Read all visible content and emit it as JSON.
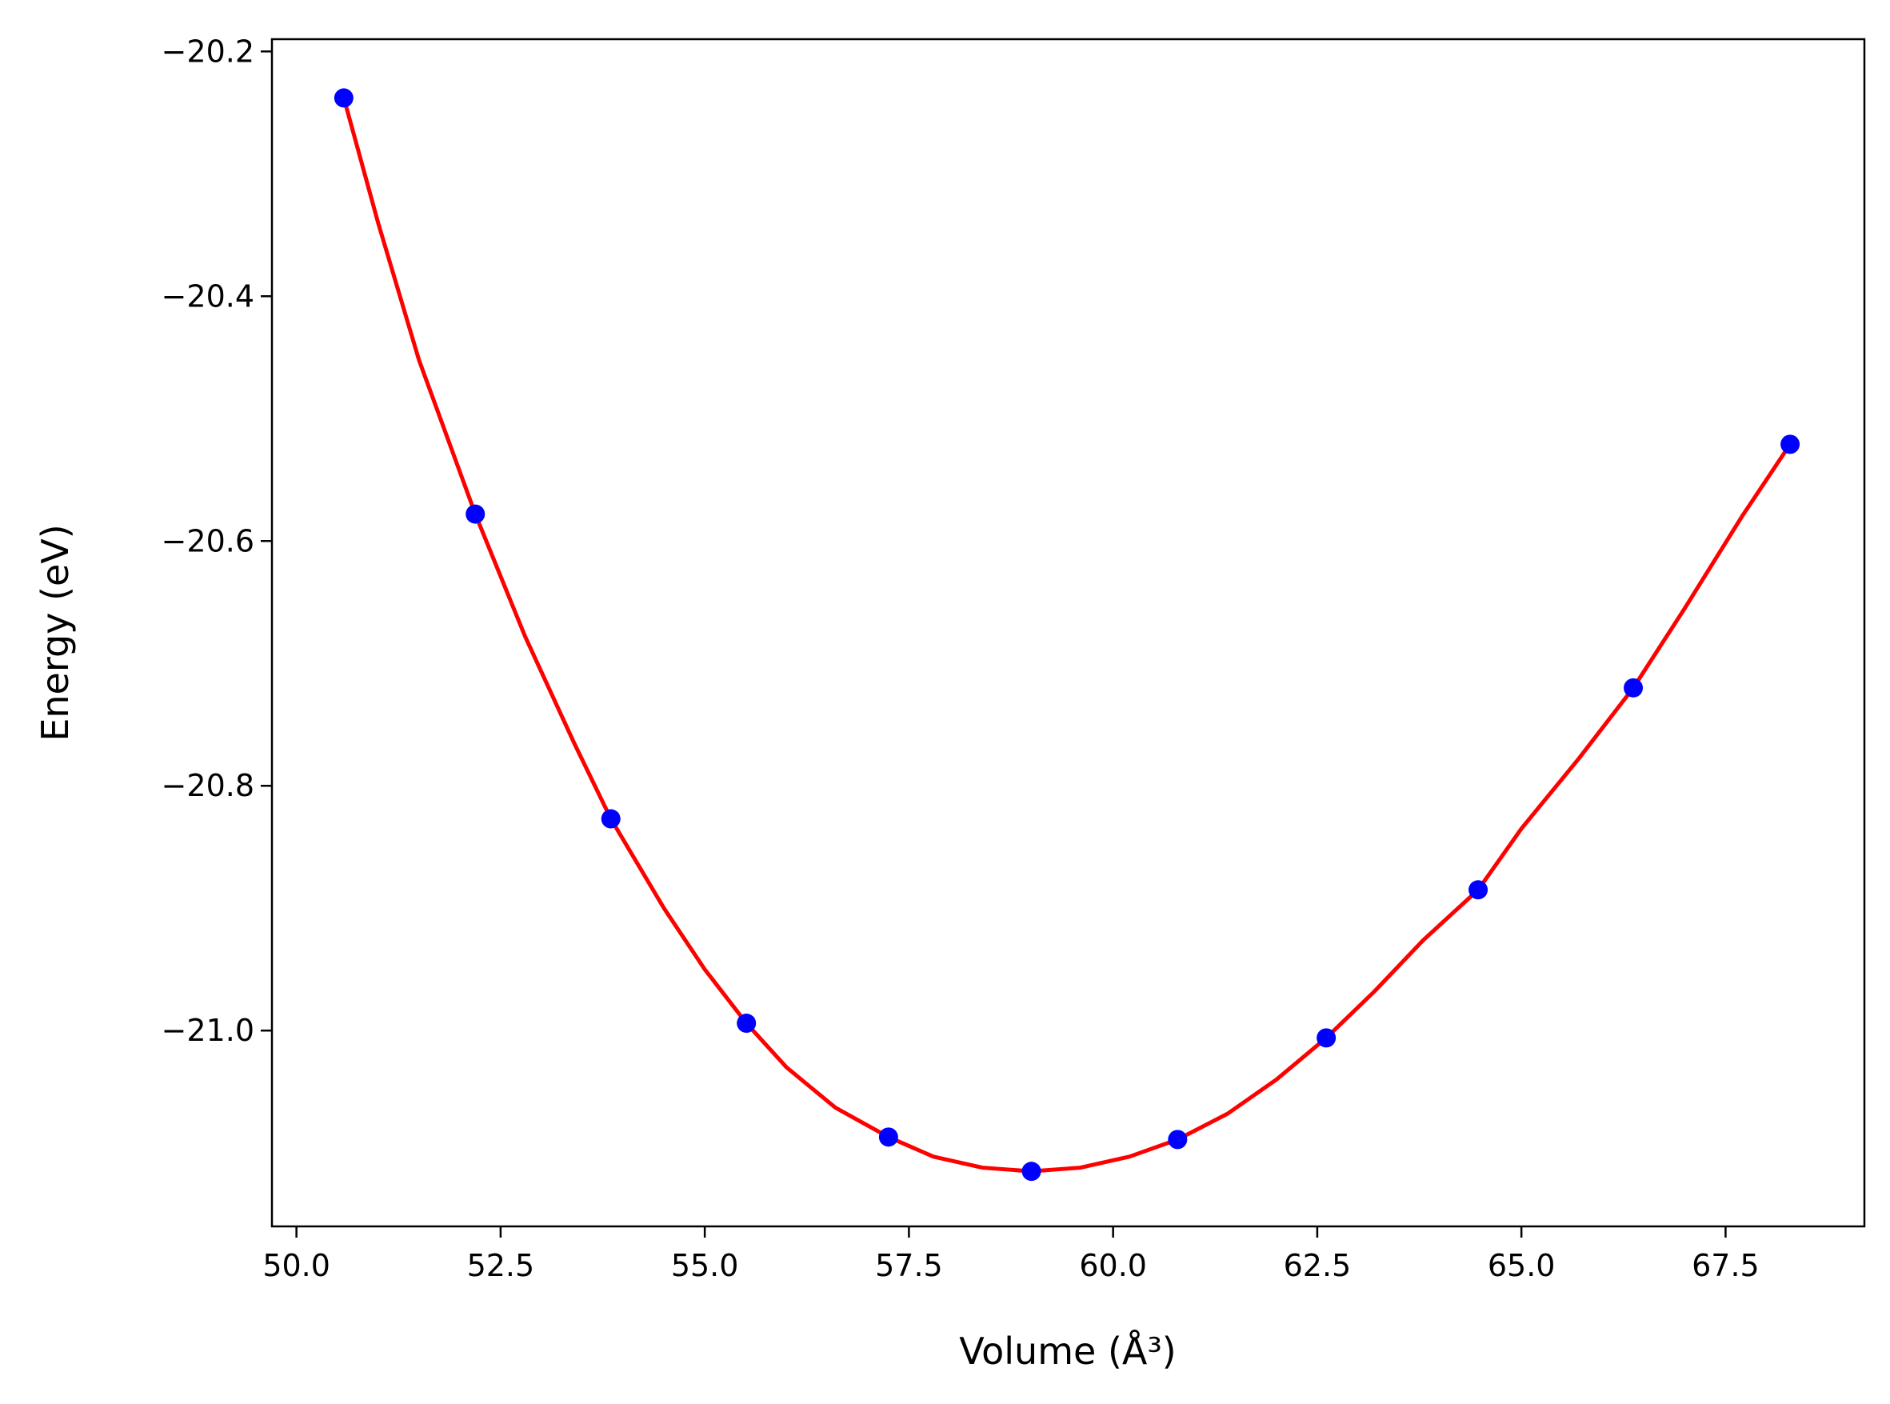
{
  "chart_data": {
    "type": "line",
    "title": "",
    "xlabel": "Volume (Å³)",
    "ylabel": "Energy (eV)",
    "xlim": [
      49.7,
      69.2
    ],
    "ylim": [
      -21.16,
      -20.19
    ],
    "xticks": [
      50.0,
      52.5,
      55.0,
      57.5,
      60.0,
      62.5,
      65.0,
      67.5
    ],
    "xtick_labels": [
      "50.0",
      "52.5",
      "55.0",
      "57.5",
      "60.0",
      "62.5",
      "65.0",
      "67.5"
    ],
    "yticks": [
      -20.2,
      -20.4,
      -20.6,
      -20.8,
      -21.0
    ],
    "ytick_labels": [
      "−20.2",
      "−20.4",
      "−20.6",
      "−20.8",
      "−21.0"
    ],
    "grid": false,
    "series": [
      {
        "kind": "scatter",
        "color": "#0000ff",
        "x": [
          50.58,
          52.19,
          53.85,
          55.51,
          57.25,
          59.0,
          60.79,
          62.61,
          64.47,
          66.37,
          68.29
        ],
        "y": [
          -20.238,
          -20.578,
          -20.827,
          -20.994,
          -21.087,
          -21.115,
          -21.089,
          -21.006,
          -20.885,
          -20.72,
          -20.521
        ]
      },
      {
        "kind": "line",
        "color": "#ff0000",
        "x": [
          50.58,
          51.0,
          51.5,
          52.19,
          52.8,
          53.4,
          53.85,
          54.5,
          55.0,
          55.51,
          56.0,
          56.6,
          57.25,
          57.8,
          58.4,
          59.0,
          59.6,
          60.2,
          60.79,
          61.4,
          62.0,
          62.61,
          63.2,
          63.8,
          64.47,
          65.0,
          65.7,
          66.37,
          67.0,
          67.7,
          68.29
        ],
        "y": [
          -20.238,
          -20.34,
          -20.452,
          -20.578,
          -20.678,
          -20.765,
          -20.827,
          -20.9,
          -20.95,
          -20.994,
          -21.03,
          -21.063,
          -21.087,
          -21.103,
          -21.112,
          -21.115,
          -21.112,
          -21.103,
          -21.089,
          -21.068,
          -21.04,
          -21.006,
          -20.968,
          -20.926,
          -20.885,
          -20.835,
          -20.778,
          -20.72,
          -20.655,
          -20.58,
          -20.521
        ]
      }
    ]
  }
}
